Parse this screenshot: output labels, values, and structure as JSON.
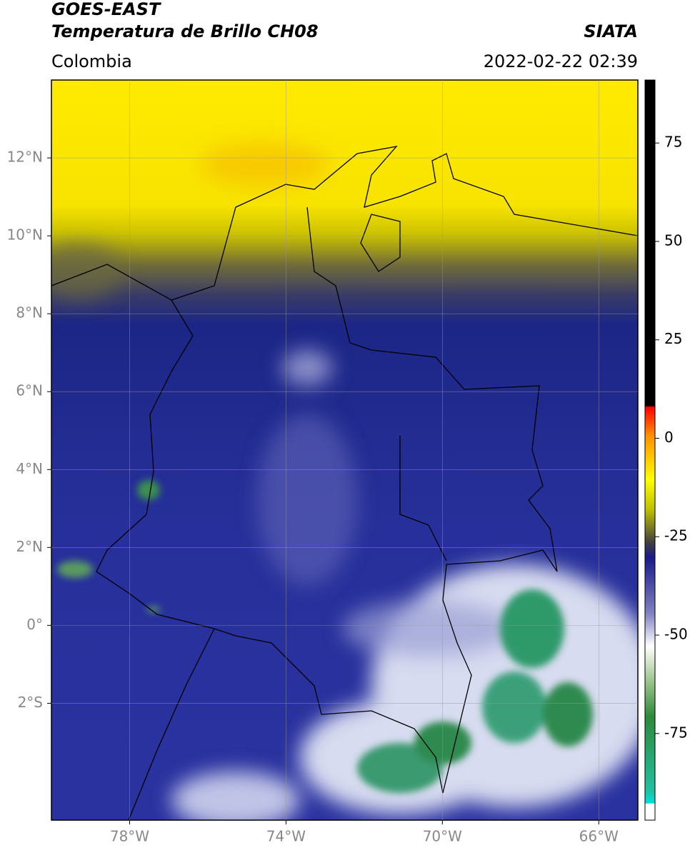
{
  "header": {
    "source": "GOES-EAST",
    "product": "Temperatura de Brillo CH08",
    "agency": "SIATA",
    "region": "Colombia",
    "datetime": "2022-02-22 02:39"
  },
  "map": {
    "xlim": [
      -80,
      -65
    ],
    "ylim": [
      -5,
      14
    ],
    "grid": true,
    "xticks": [
      {
        "value": -78,
        "label": "78°W"
      },
      {
        "value": -74,
        "label": "74°W"
      },
      {
        "value": -70,
        "label": "70°W"
      },
      {
        "value": -66,
        "label": "66°W"
      }
    ],
    "yticks": [
      {
        "value": 12,
        "label": "12°N"
      },
      {
        "value": 10,
        "label": "10°N"
      },
      {
        "value": 8,
        "label": "8°N"
      },
      {
        "value": 6,
        "label": "6°N"
      },
      {
        "value": 4,
        "label": "4°N"
      },
      {
        "value": 2,
        "label": "2°N"
      },
      {
        "value": 0,
        "label": "0°"
      },
      {
        "value": -2,
        "label": "2°S"
      }
    ]
  },
  "colorbar": {
    "lim": [
      -97,
      91
    ],
    "ticks": [
      75,
      50,
      25,
      0,
      -25,
      -50,
      -75
    ]
  }
}
